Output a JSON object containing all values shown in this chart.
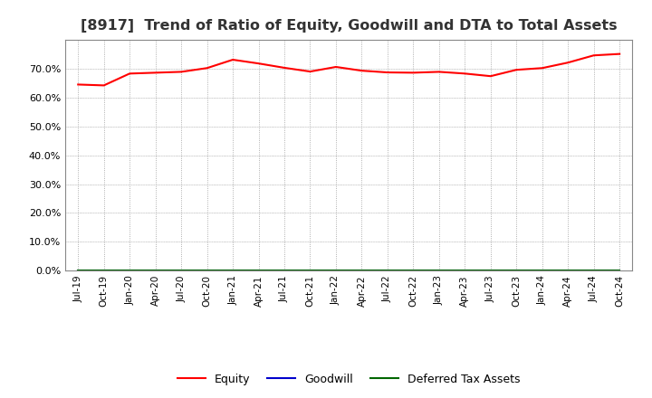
{
  "title": "[8917]  Trend of Ratio of Equity, Goodwill and DTA to Total Assets",
  "title_fontsize": 11.5,
  "background_color": "#ffffff",
  "plot_bg_color": "#ffffff",
  "x_labels": [
    "Jul-19",
    "Oct-19",
    "Jan-20",
    "Apr-20",
    "Jul-20",
    "Oct-20",
    "Jan-21",
    "Apr-21",
    "Jul-21",
    "Oct-21",
    "Jan-22",
    "Apr-22",
    "Jul-22",
    "Oct-22",
    "Jan-23",
    "Apr-23",
    "Jul-23",
    "Oct-23",
    "Jan-24",
    "Apr-24",
    "Jul-24",
    "Oct-24"
  ],
  "equity": [
    64.5,
    64.2,
    68.3,
    68.6,
    68.9,
    70.2,
    73.1,
    71.8,
    70.3,
    69.0,
    70.6,
    69.3,
    68.7,
    68.6,
    68.9,
    68.3,
    67.4,
    69.6,
    70.2,
    72.1,
    74.6,
    75.1
  ],
  "goodwill": [
    0,
    0,
    0,
    0,
    0,
    0,
    0,
    0,
    0,
    0,
    0,
    0,
    0,
    0,
    0,
    0,
    0,
    0,
    0,
    0,
    0,
    0
  ],
  "dta": [
    0,
    0,
    0,
    0,
    0,
    0,
    0,
    0,
    0,
    0,
    0,
    0,
    0,
    0,
    0,
    0,
    0,
    0,
    0,
    0,
    0,
    0
  ],
  "equity_color": "#ff0000",
  "goodwill_color": "#0000cc",
  "dta_color": "#006600",
  "ylim": [
    0,
    80
  ],
  "yticks": [
    0,
    10,
    20,
    30,
    40,
    50,
    60,
    70
  ],
  "ytick_labels": [
    "0.0%",
    "10.0%",
    "20.0%",
    "30.0%",
    "40.0%",
    "50.0%",
    "60.0%",
    "70.0%"
  ],
  "legend_labels": [
    "Equity",
    "Goodwill",
    "Deferred Tax Assets"
  ],
  "grid_color": "#999999",
  "line_width": 1.5,
  "tick_fontsize": 8,
  "xlabel_fontsize": 7.5
}
